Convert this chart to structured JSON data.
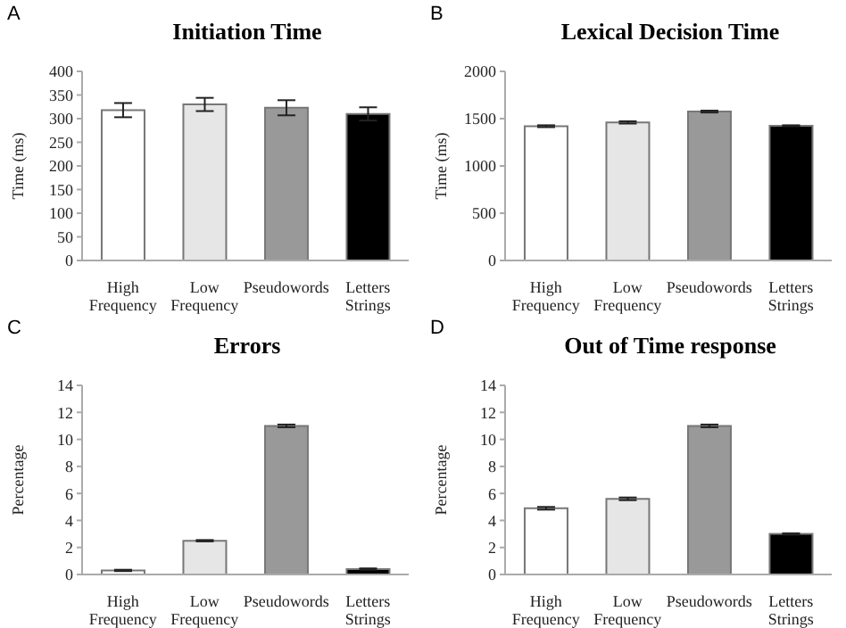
{
  "chart_data": [
    {
      "type": "bar",
      "title": "Initiation Time",
      "annotations": [
        "A"
      ],
      "ylabel": "Time (ms)",
      "categories": [
        "High Frequency",
        "Low Frequency",
        "Pseudowords",
        "Letters Strings"
      ],
      "colors": [
        "#ffffff",
        "#e6e6e6",
        "#999999",
        "#000000"
      ],
      "values": [
        318,
        330,
        323,
        310
      ],
      "errors": [
        15,
        14,
        16,
        14
      ],
      "ylim": [
        0,
        400
      ],
      "yticks": [
        0,
        50,
        100,
        150,
        200,
        250,
        300,
        350,
        400
      ]
    },
    {
      "type": "bar",
      "title": "Lexical Decision Time",
      "annotations": [
        "B"
      ],
      "ylabel": "Time (ms)",
      "categories": [
        "High Frequency",
        "Low Frequency",
        "Pseudowords",
        "Letters Strings"
      ],
      "colors": [
        "#ffffff",
        "#e6e6e6",
        "#999999",
        "#000000"
      ],
      "values": [
        1420,
        1460,
        1575,
        1425
      ],
      "errors": [
        10,
        12,
        10,
        5
      ],
      "ylim": [
        0,
        2000
      ],
      "yticks": [
        0,
        500,
        1000,
        1500,
        2000
      ]
    },
    {
      "type": "bar",
      "title": "Errors",
      "annotations": [
        "C"
      ],
      "ylabel": "Percentage",
      "categories": [
        "High Frequency",
        "Low Frequency",
        "Pseudowords",
        "Letters Strings"
      ],
      "colors": [
        "#ffffff",
        "#e6e6e6",
        "#999999",
        "#000000"
      ],
      "values": [
        0.3,
        2.5,
        11,
        0.4
      ],
      "errors": [
        0.05,
        0.05,
        0.1,
        0.05
      ],
      "ylim": [
        0,
        14
      ],
      "yticks": [
        0,
        2,
        4,
        6,
        8,
        10,
        12,
        14
      ]
    },
    {
      "type": "bar",
      "title": "Out of Time response",
      "annotations": [
        "D"
      ],
      "ylabel": "Percentage",
      "categories": [
        "High Frequency",
        "Low Frequency",
        "Pseudowords",
        "Letters Strings"
      ],
      "colors": [
        "#ffffff",
        "#e6e6e6",
        "#999999",
        "#000000"
      ],
      "values": [
        4.9,
        5.6,
        11,
        3.0
      ],
      "errors": [
        0.1,
        0.1,
        0.1,
        0.05
      ],
      "ylim": [
        0,
        14
      ],
      "yticks": [
        0,
        2,
        4,
        6,
        8,
        10,
        12,
        14
      ]
    }
  ]
}
